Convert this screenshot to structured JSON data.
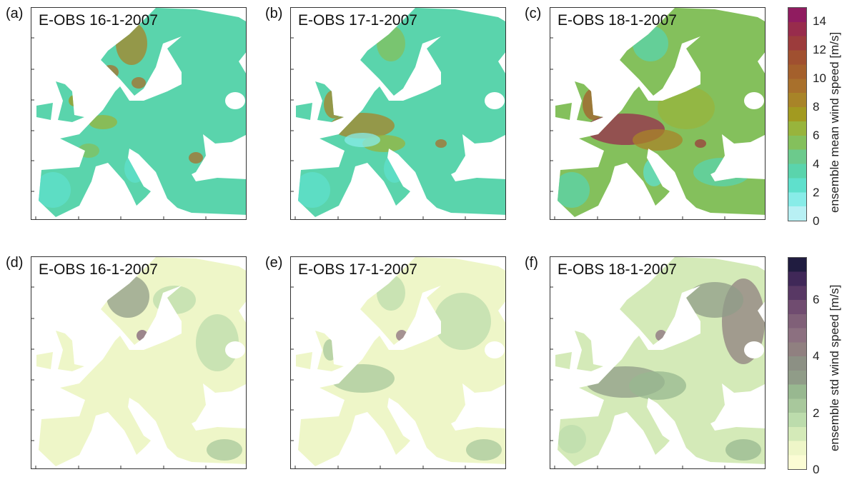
{
  "panels": [
    {
      "label": "(a)",
      "title": "E-OBS 16-1-2007",
      "variable": "mean"
    },
    {
      "label": "(b)",
      "title": "E-OBS 17-1-2007",
      "variable": "mean"
    },
    {
      "label": "(c)",
      "title": "E-OBS 18-1-2007",
      "variable": "mean"
    },
    {
      "label": "(d)",
      "title": "E-OBS 16-1-2007",
      "variable": "std"
    },
    {
      "label": "(e)",
      "title": "E-OBS 17-1-2007",
      "variable": "std"
    },
    {
      "label": "(f)",
      "title": "E-OBS 18-1-2007",
      "variable": "std"
    }
  ],
  "colorbars": {
    "mean": {
      "label": "ensemble mean wind speed [m/s]",
      "range": [
        0,
        15
      ],
      "ticks": [
        "0",
        "2",
        "4",
        "6",
        "8",
        "10",
        "12",
        "14"
      ],
      "colors": [
        "#b8f0f4",
        "#88ece8",
        "#5fe0cc",
        "#5ad4ac",
        "#6cca8c",
        "#84c05c",
        "#98b43c",
        "#a29a20",
        "#a88428",
        "#a8702c",
        "#a4602c",
        "#a05030",
        "#9c3c3c",
        "#982c4c",
        "#901c60"
      ]
    },
    "std": {
      "label": "ensemble std wind speed [m/s]",
      "range": [
        0,
        7.5
      ],
      "ticks": [
        "0",
        "2",
        "4",
        "6"
      ],
      "colors": [
        "#fbfcd4",
        "#eef6c8",
        "#d4eab8",
        "#bcdcac",
        "#a8c89c",
        "#98b890",
        "#909c88",
        "#8c9084",
        "#908080",
        "#8c7080",
        "#806078",
        "#704c70",
        "#583864",
        "#402858",
        "#201c40"
      ]
    }
  }
}
